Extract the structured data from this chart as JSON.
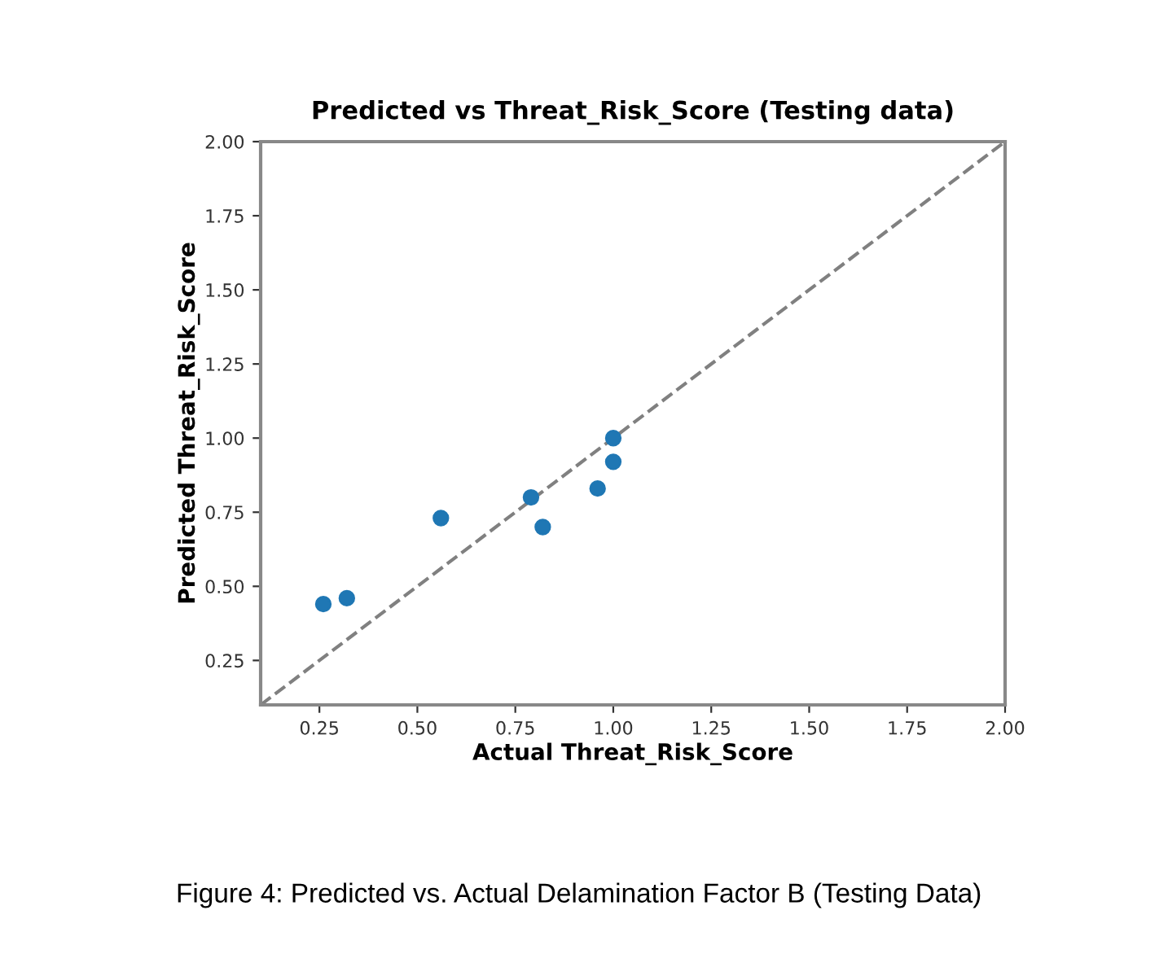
{
  "chart_data": {
    "type": "scatter",
    "title": "Predicted vs Threat_Risk_Score (Testing data)",
    "xlabel": "Actual Threat_Risk_Score",
    "ylabel": "Predicted Threat_Risk_Score",
    "series": [
      {
        "color": "#1f77b4",
        "x": [
          0.26,
          0.32,
          0.56,
          0.79,
          0.82,
          0.96,
          1.0,
          1.0
        ],
        "values": [
          0.44,
          0.46,
          0.73,
          0.8,
          0.7,
          0.83,
          1.0,
          0.92
        ],
        "marker": "circle"
      },
      {
        "type": "line",
        "color": "#808080",
        "x": [
          0.1,
          2.0
        ],
        "values": [
          0.1,
          2.0
        ],
        "line_style": "dashed",
        "marker": "none"
      }
    ],
    "xlim": [
      0.1,
      2.0
    ],
    "ylim": [
      0.1,
      2.0
    ],
    "xticks": [
      {
        "value": 0.25,
        "label": "0.25"
      },
      {
        "value": 0.5,
        "label": "0.50"
      },
      {
        "value": 0.75,
        "label": "0.75"
      },
      {
        "value": 1.0,
        "label": "1.00"
      },
      {
        "value": 1.25,
        "label": "1.25"
      },
      {
        "value": 1.5,
        "label": "1.50"
      },
      {
        "value": 1.75,
        "label": "1.75"
      },
      {
        "value": 2.0,
        "label": "2.00"
      }
    ],
    "yticks": [
      {
        "value": 0.25,
        "label": "0.25"
      },
      {
        "value": 0.5,
        "label": "0.50"
      },
      {
        "value": 0.75,
        "label": "0.75"
      },
      {
        "value": 1.0,
        "label": "1.00"
      },
      {
        "value": 1.25,
        "label": "1.25"
      },
      {
        "value": 1.5,
        "label": "1.50"
      },
      {
        "value": 1.75,
        "label": "1.75"
      },
      {
        "value": 2.0,
        "label": "2.00"
      }
    ],
    "grid": false,
    "legend": false,
    "annotations": [
      "Figure 4: Predicted vs. Actual Delamination Factor B (Testing Data)"
    ]
  }
}
